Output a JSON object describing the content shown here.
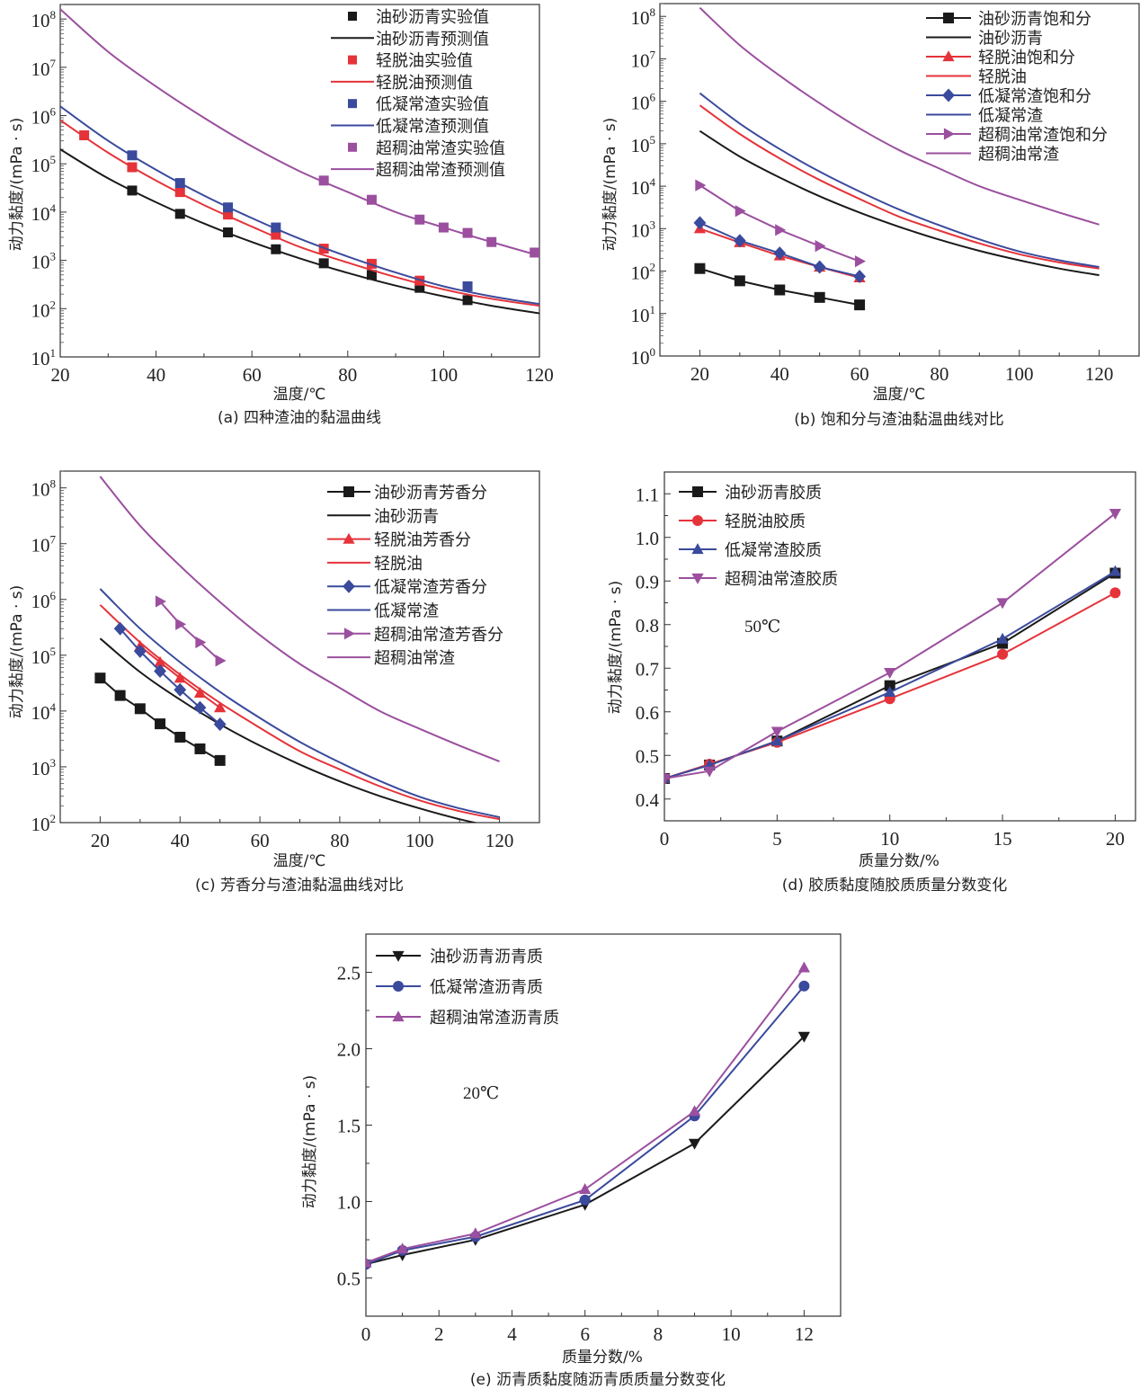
{
  "colors": {
    "black": "#1a1a1a",
    "red": "#e5333a",
    "blue": "#3a4a9c",
    "purple": "#9b4f9e"
  },
  "chart_data": [
    {
      "id": "a",
      "type": "line",
      "yscale": "log",
      "caption": "(a) 四种渣油的黏温曲线",
      "xlabel": "温度/℃",
      "ylabel": "动力黏度/(mPa · s)",
      "xlim": [
        20,
        120
      ],
      "ylim": [
        10,
        200000000
      ],
      "xticks": [
        20,
        40,
        60,
        80,
        100,
        120
      ],
      "yticks": [
        10,
        100,
        1000,
        10000,
        100000,
        1000000,
        10000000,
        100000000
      ],
      "ytick_labels": [
        "10^1",
        "10^2",
        "10^3",
        "10^4",
        "10^5",
        "10^6",
        "10^7",
        "10^8"
      ],
      "legend_position": "top-right",
      "series": [
        {
          "name": "油砂沥青实验值",
          "color": "black",
          "kind": "marker",
          "marker": "square",
          "x": [
            35,
            45,
            55,
            65,
            75,
            85,
            95,
            105
          ],
          "y": [
            28000,
            9200,
            3800,
            1700,
            870,
            500,
            270,
            150
          ]
        },
        {
          "name": "油砂沥青预测值",
          "color": "black",
          "kind": "line",
          "x": [
            20,
            30,
            40,
            50,
            60,
            70,
            80,
            90,
            100,
            110,
            120
          ],
          "y": [
            200000,
            50000,
            16000,
            5800,
            2400,
            1100,
            550,
            300,
            180,
            115,
            80
          ]
        },
        {
          "name": "轻脱油实验值",
          "color": "red",
          "kind": "marker",
          "marker": "square",
          "x": [
            25,
            35,
            45,
            55,
            65,
            75,
            85,
            95
          ],
          "y": [
            390000,
            85000,
            26000,
            8900,
            3400,
            1750,
            850,
            380
          ]
        },
        {
          "name": "轻脱油预测值",
          "color": "red",
          "kind": "line",
          "x": [
            20,
            30,
            40,
            50,
            60,
            70,
            80,
            90,
            100,
            110,
            120
          ],
          "y": [
            800000,
            170000,
            45000,
            14000,
            5000,
            1900,
            900,
            450,
            250,
            160,
            115
          ]
        },
        {
          "name": "低凝常渣实验值",
          "color": "blue",
          "kind": "marker",
          "marker": "square",
          "x": [
            35,
            45,
            55,
            65,
            105
          ],
          "y": [
            150000,
            40000,
            12500,
            4800,
            290
          ]
        },
        {
          "name": "低凝常渣预测值",
          "color": "blue",
          "kind": "line",
          "x": [
            20,
            30,
            40,
            50,
            60,
            70,
            80,
            90,
            100,
            110,
            120
          ],
          "y": [
            1550000,
            300000,
            75000,
            22000,
            7500,
            2800,
            1200,
            560,
            290,
            180,
            125
          ]
        },
        {
          "name": "超稠油常渣实验值",
          "color": "purple",
          "kind": "marker",
          "marker": "square",
          "x": [
            75,
            85,
            95,
            100,
            105,
            110,
            119
          ],
          "y": [
            45000,
            18000,
            7000,
            4800,
            3700,
            2400,
            1450
          ]
        },
        {
          "name": "超稠油常渣预测值",
          "color": "purple",
          "kind": "line",
          "x": [
            20,
            30,
            40,
            50,
            60,
            70,
            80,
            90,
            100,
            110,
            120
          ],
          "y": [
            160000000,
            21000000,
            4000000,
            900000,
            230000,
            70000,
            26000,
            10000,
            4800,
            2400,
            1250
          ]
        }
      ]
    },
    {
      "id": "b",
      "type": "line",
      "yscale": "log",
      "caption": "(b) 饱和分与渣油黏温曲线对比",
      "xlabel": "温度/℃",
      "ylabel": "动力黏度/(mPa · s)",
      "xlim": [
        10,
        130
      ],
      "ylim": [
        1,
        200000000
      ],
      "xticks": [
        20,
        40,
        60,
        80,
        100,
        120
      ],
      "yticks": [
        1,
        10,
        100,
        1000,
        10000,
        100000,
        1000000,
        10000000,
        100000000
      ],
      "ytick_labels": [
        "10^0",
        "10^1",
        "10^2",
        "10^3",
        "10^4",
        "10^5",
        "10^6",
        "10^7",
        "10^8"
      ],
      "legend_position": "top-right",
      "series": [
        {
          "name": "油砂沥青饱和分",
          "color": "black",
          "kind": "line-marker",
          "marker": "square",
          "x": [
            20,
            30,
            40,
            50,
            60
          ],
          "y": [
            115,
            59,
            36,
            24,
            16
          ]
        },
        {
          "name": "油砂沥青",
          "color": "black",
          "kind": "line",
          "x": [
            20,
            30,
            40,
            50,
            60,
            70,
            80,
            90,
            100,
            110,
            120
          ],
          "y": [
            200000,
            50000,
            16000,
            5800,
            2400,
            1100,
            550,
            300,
            180,
            115,
            80
          ]
        },
        {
          "name": "轻脱油饱和分",
          "color": "red",
          "kind": "line-marker",
          "marker": "triangle-up",
          "x": [
            20,
            30,
            40,
            50,
            60
          ],
          "y": [
            1000,
            470,
            230,
            125,
            70
          ]
        },
        {
          "name": "轻脱油",
          "color": "red",
          "kind": "line",
          "x": [
            20,
            30,
            40,
            50,
            60,
            70,
            80,
            90,
            100,
            110,
            120
          ],
          "y": [
            800000,
            170000,
            45000,
            14000,
            5000,
            1900,
            900,
            450,
            250,
            160,
            115
          ]
        },
        {
          "name": "低凝常渣饱和分",
          "color": "blue",
          "kind": "line-marker",
          "marker": "diamond",
          "x": [
            20,
            30,
            40,
            50,
            60
          ],
          "y": [
            1370,
            520,
            265,
            125,
            75
          ]
        },
        {
          "name": "低凝常渣",
          "color": "blue",
          "kind": "line",
          "x": [
            20,
            30,
            40,
            50,
            60,
            70,
            80,
            90,
            100,
            110,
            120
          ],
          "y": [
            1550000,
            300000,
            75000,
            22000,
            7500,
            2800,
            1200,
            560,
            290,
            180,
            125
          ]
        },
        {
          "name": "超稠油常渣饱和分",
          "color": "purple",
          "kind": "line-marker",
          "marker": "triangle-right",
          "x": [
            20,
            30,
            40,
            50,
            60
          ],
          "y": [
            10500,
            2600,
            930,
            390,
            170
          ]
        },
        {
          "name": "超稠油常渣",
          "color": "purple",
          "kind": "line",
          "x": [
            20,
            30,
            40,
            50,
            60,
            70,
            80,
            90,
            100,
            110,
            120
          ],
          "y": [
            160000000,
            21000000,
            4000000,
            900000,
            230000,
            70000,
            26000,
            10000,
            4800,
            2400,
            1250
          ]
        }
      ]
    },
    {
      "id": "c",
      "type": "line",
      "yscale": "log",
      "caption": "(c) 芳香分与渣油黏温曲线对比",
      "xlabel": "温度/℃",
      "ylabel": "动力黏度/(mPa · s)",
      "xlim": [
        10,
        130
      ],
      "ylim": [
        100,
        200000000
      ],
      "xticks": [
        20,
        40,
        60,
        80,
        100,
        120
      ],
      "yticks": [
        100,
        1000,
        10000,
        100000,
        1000000,
        10000000,
        100000000
      ],
      "ytick_labels": [
        "10^2",
        "10^3",
        "10^4",
        "10^5",
        "10^6",
        "10^7",
        "10^8"
      ],
      "legend_position": "top-right",
      "series": [
        {
          "name": "油砂沥青芳香分",
          "color": "black",
          "kind": "line-marker",
          "marker": "square",
          "x": [
            20,
            25,
            30,
            35,
            40,
            45,
            50
          ],
          "y": [
            39000,
            19000,
            11000,
            5900,
            3400,
            2100,
            1300
          ]
        },
        {
          "name": "油砂沥青",
          "color": "black",
          "kind": "line",
          "x": [
            20,
            30,
            40,
            50,
            60,
            70,
            80,
            90,
            100,
            110,
            120
          ],
          "y": [
            200000,
            50000,
            16000,
            5800,
            2400,
            1100,
            550,
            300,
            180,
            115,
            80
          ]
        },
        {
          "name": "轻脱油芳香分",
          "color": "red",
          "kind": "line-marker",
          "marker": "triangle-up",
          "x": [
            30,
            35,
            40,
            45,
            50
          ],
          "y": [
            145000,
            75000,
            39000,
            21000,
            11500
          ]
        },
        {
          "name": "轻脱油",
          "color": "red",
          "kind": "line",
          "x": [
            20,
            30,
            40,
            50,
            60,
            70,
            80,
            90,
            100,
            110,
            120
          ],
          "y": [
            800000,
            170000,
            45000,
            14000,
            5000,
            1900,
            900,
            450,
            250,
            160,
            115
          ]
        },
        {
          "name": "低凝常渣芳香分",
          "color": "blue",
          "kind": "line-marker",
          "marker": "diamond",
          "x": [
            25,
            30,
            35,
            40,
            45,
            50
          ],
          "y": [
            300000,
            118000,
            52000,
            24000,
            11500,
            5800
          ]
        },
        {
          "name": "低凝常渣",
          "color": "blue",
          "kind": "line",
          "x": [
            20,
            30,
            40,
            50,
            60,
            70,
            80,
            90,
            100,
            110,
            120
          ],
          "y": [
            1550000,
            300000,
            75000,
            22000,
            7500,
            2800,
            1200,
            560,
            290,
            180,
            125
          ]
        },
        {
          "name": "超稠油常渣芳香分",
          "color": "purple",
          "kind": "line-marker",
          "marker": "triangle-right",
          "x": [
            35,
            40,
            45,
            50
          ],
          "y": [
            920000,
            360000,
            170000,
            80000
          ]
        },
        {
          "name": "超稠油常渣",
          "color": "purple",
          "kind": "line",
          "x": [
            20,
            30,
            40,
            50,
            60,
            70,
            80,
            90,
            100,
            110,
            120
          ],
          "y": [
            160000000,
            21000000,
            4000000,
            900000,
            230000,
            70000,
            26000,
            10000,
            4800,
            2400,
            1250
          ]
        }
      ]
    },
    {
      "id": "d",
      "type": "line",
      "yscale": "linear",
      "caption": "(d) 胶质黏度随胶质质量分数变化",
      "xlabel": "质量分数/%",
      "ylabel": "动力黏度/(mPa · s)",
      "annotation": "50℃",
      "xlim": [
        0,
        20.9
      ],
      "ylim": [
        0.35,
        1.15
      ],
      "xticks": [
        0,
        5,
        10,
        15,
        20
      ],
      "yticks": [
        0.4,
        0.5,
        0.6,
        0.7,
        0.8,
        0.9,
        1.0,
        1.1
      ],
      "ytick_labels": [
        "0.4",
        "0.5",
        "0.6",
        "0.7",
        "0.8",
        "0.9",
        "1.0",
        "1.1"
      ],
      "legend_position": "top-left",
      "series": [
        {
          "name": "油砂沥青胶质",
          "color": "black",
          "kind": "line-marker",
          "marker": "square",
          "x": [
            0,
            2,
            5,
            10,
            15,
            20
          ],
          "y": [
            0.447,
            0.478,
            0.533,
            0.66,
            0.757,
            0.918
          ]
        },
        {
          "name": "轻脱油胶质",
          "color": "red",
          "kind": "line-marker",
          "marker": "circle",
          "x": [
            0,
            2,
            5,
            10,
            15,
            20
          ],
          "y": [
            0.447,
            0.48,
            0.53,
            0.63,
            0.732,
            0.873
          ]
        },
        {
          "name": "低凝常渣胶质",
          "color": "blue",
          "kind": "line-marker",
          "marker": "triangle-up",
          "x": [
            0,
            2,
            5,
            10,
            15,
            20
          ],
          "y": [
            0.447,
            0.478,
            0.533,
            0.645,
            0.767,
            0.922
          ]
        },
        {
          "name": "超稠油常渣胶质",
          "color": "purple",
          "kind": "line-marker",
          "marker": "triangle-down",
          "x": [
            0,
            2,
            5,
            10,
            15,
            20
          ],
          "y": [
            0.447,
            0.464,
            0.555,
            0.69,
            0.85,
            1.055
          ]
        }
      ]
    },
    {
      "id": "e",
      "type": "line",
      "yscale": "linear",
      "caption": "(e) 沥青质黏度随沥青质质量分数变化",
      "xlabel": "质量分数/%",
      "ylabel": "动力黏度/(mPa · s)",
      "annotation": "20℃",
      "xlim": [
        0,
        13
      ],
      "ylim": [
        0.25,
        2.75
      ],
      "xticks": [
        0,
        2,
        4,
        6,
        8,
        10,
        12
      ],
      "yticks": [
        0.5,
        1.0,
        1.5,
        2.0,
        2.5
      ],
      "ytick_labels": [
        "0.5",
        "1.0",
        "1.5",
        "2.0",
        "2.5"
      ],
      "legend_position": "top-left",
      "series": [
        {
          "name": "油砂沥青沥青质",
          "color": "black",
          "kind": "line-marker",
          "marker": "triangle-down",
          "x": [
            0,
            1,
            3,
            6,
            9,
            12
          ],
          "y": [
            0.59,
            0.65,
            0.75,
            0.98,
            1.38,
            2.08
          ]
        },
        {
          "name": "低凝常渣沥青质",
          "color": "blue",
          "kind": "line-marker",
          "marker": "circle",
          "x": [
            0,
            1,
            3,
            6,
            9,
            12
          ],
          "y": [
            0.59,
            0.68,
            0.77,
            1.01,
            1.56,
            2.41
          ]
        },
        {
          "name": "超稠油常渣沥青质",
          "color": "purple",
          "kind": "line-marker",
          "marker": "triangle-up",
          "x": [
            0,
            1,
            3,
            6,
            9,
            12
          ],
          "y": [
            0.6,
            0.69,
            0.79,
            1.08,
            1.59,
            2.53
          ]
        }
      ]
    }
  ]
}
